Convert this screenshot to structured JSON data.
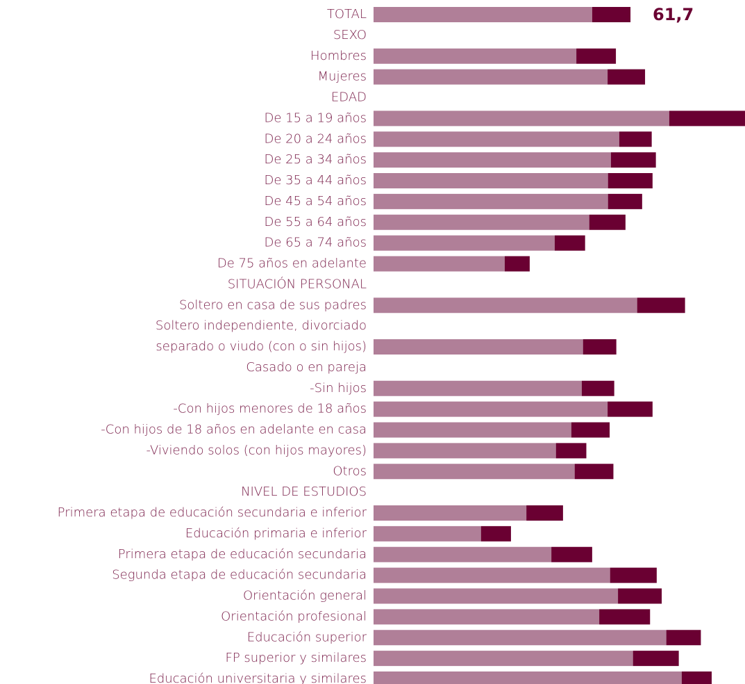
{
  "chart_data": {
    "type": "stacked-barh",
    "categories": [
      "TOTAL",
      "SEXO",
      "Hombres",
      "Mujeres",
      "EDAD",
      "De 15 a 19 años",
      "De 20 a 24 años",
      "De 25 a 34 años",
      "De 35 a 44 años",
      "De 45 a 54 años",
      "De 55 a 64 años",
      "De 65 a 74 años",
      "De 75 años en adelante",
      "SITUACIÓN PERSONAL",
      "Soltero en casa de sus padres",
      "Soltero independiente, divorciado",
      "separado o viudo (con o sin hijos)",
      "Casado o en pareja",
      "-Sin hijos",
      "-Con hijos menores de 18 años",
      "-Con hijos de 18 años en adelante en casa",
      "-Viviendo solos (con hijos mayores)",
      "Otros",
      "NIVEL DE ESTUDIOS",
      "Primera etapa de educación secundaria e inferior",
      "Educación primaria e inferior",
      "Primera etapa de educación secundaria",
      "Segunda etapa de educación secundaria",
      "Orientación general",
      "Orientación profesional",
      "Educación superior",
      "FP superior y similares",
      "Educación universitaria y similares"
    ],
    "series": [
      {
        "color": "#b07f98",
        "values": [
          52.5,
          null,
          48.7,
          56.2,
          null,
          71.0,
          59.0,
          57.0,
          56.3,
          56.3,
          51.8,
          43.5,
          31.5,
          null,
          63.3,
          null,
          50.3,
          null,
          50.0,
          56.2,
          47.5,
          43.8,
          48.3,
          null,
          36.7,
          25.8,
          42.7,
          56.8,
          58.7,
          54.2,
          70.3,
          62.3,
          74.0
        ]
      },
      {
        "color": "#6a0032",
        "values": [
          9.2,
          null,
          9.5,
          9.0,
          null,
          18.2,
          7.8,
          10.8,
          10.7,
          8.2,
          8.7,
          7.3,
          6.0,
          null,
          11.5,
          null,
          8.0,
          null,
          7.8,
          10.8,
          9.2,
          7.3,
          9.3,
          null,
          8.8,
          7.2,
          9.8,
          11.2,
          10.5,
          12.2,
          8.3,
          11.0,
          7.2
        ]
      }
    ],
    "total_label": "61,7",
    "xlim": [
      0,
      89.2
    ]
  }
}
